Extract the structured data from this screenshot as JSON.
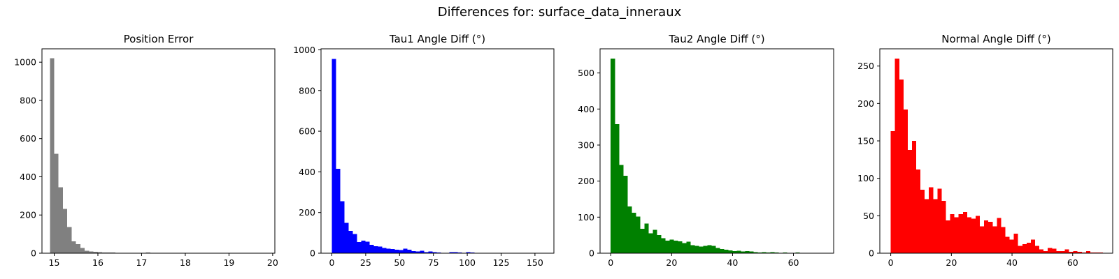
{
  "suptitle": "Differences for: surface_data_inneraux",
  "chart_data": [
    {
      "type": "bar",
      "title": "Position Error",
      "color": "#808080",
      "bin_start": 14.9,
      "bin_width": 0.1,
      "values": [
        1020,
        520,
        345,
        232,
        137,
        62,
        48,
        28,
        12,
        9,
        8,
        6,
        4,
        4,
        3,
        2,
        2,
        1,
        1,
        1,
        1,
        1,
        3,
        1,
        1,
        1,
        1,
        0,
        0,
        0,
        0,
        0,
        0,
        0,
        0,
        0,
        0,
        0,
        1,
        2,
        0,
        0,
        0,
        0,
        0,
        0,
        0,
        0,
        0,
        0
      ],
      "xlim": [
        14.72,
        20.05
      ],
      "ylim": [
        0,
        1070
      ],
      "xticks": [
        15,
        16,
        17,
        18,
        19,
        20
      ],
      "yticks": [
        0,
        200,
        400,
        600,
        800,
        1000
      ]
    },
    {
      "type": "bar",
      "title": "Tau1 Angle Diff (°)",
      "color": "#0000ff",
      "bin_start": 0,
      "bin_width": 3.1,
      "values": [
        955,
        415,
        255,
        150,
        110,
        95,
        55,
        62,
        57,
        42,
        35,
        32,
        25,
        22,
        20,
        18,
        15,
        22,
        18,
        10,
        8,
        12,
        5,
        8,
        5,
        3,
        2,
        2,
        5,
        6,
        3,
        2,
        5,
        3,
        2,
        2,
        1,
        1,
        1,
        1,
        1,
        0,
        0,
        0,
        0,
        1,
        0,
        0,
        0,
        1
      ],
      "xlim": [
        -8,
        164
      ],
      "ylim": [
        0,
        1005
      ],
      "xticks": [
        0,
        25,
        50,
        75,
        100,
        125,
        150
      ],
      "yticks": [
        0,
        200,
        400,
        600,
        800,
        1000
      ]
    },
    {
      "type": "bar",
      "title": "Tau2 Angle Diff (°)",
      "color": "#008000",
      "bin_start": 0,
      "bin_width": 1.38,
      "values": [
        540,
        358,
        245,
        215,
        130,
        112,
        102,
        68,
        82,
        55,
        65,
        50,
        42,
        35,
        38,
        35,
        33,
        28,
        32,
        22,
        20,
        18,
        20,
        22,
        20,
        15,
        12,
        10,
        8,
        6,
        7,
        5,
        6,
        5,
        3,
        2,
        3,
        2,
        3,
        2,
        1,
        2,
        1,
        1,
        2,
        1,
        1,
        0,
        1,
        1
      ],
      "xlim": [
        -3.5,
        73.2
      ],
      "ylim": [
        0,
        567
      ],
      "xticks": [
        0,
        20,
        40,
        60
      ],
      "yticks": [
        0,
        100,
        200,
        300,
        400,
        500
      ]
    },
    {
      "type": "bar",
      "title": "Normal Angle Diff (°)",
      "color": "#ff0000",
      "bin_start": 0,
      "bin_width": 1.4,
      "values": [
        163,
        260,
        232,
        192,
        138,
        150,
        112,
        85,
        72,
        88,
        72,
        86,
        70,
        44,
        52,
        48,
        52,
        55,
        48,
        46,
        50,
        36,
        44,
        42,
        36,
        47,
        35,
        22,
        18,
        26,
        10,
        12,
        14,
        18,
        10,
        5,
        3,
        7,
        6,
        3,
        3,
        5,
        2,
        3,
        2,
        1,
        3,
        1,
        1,
        1
      ],
      "xlim": [
        -3.6,
        73.2
      ],
      "ylim": [
        0,
        273
      ],
      "xticks": [
        0,
        20,
        40,
        60
      ],
      "yticks": [
        0,
        50,
        100,
        150,
        200,
        250
      ]
    }
  ]
}
